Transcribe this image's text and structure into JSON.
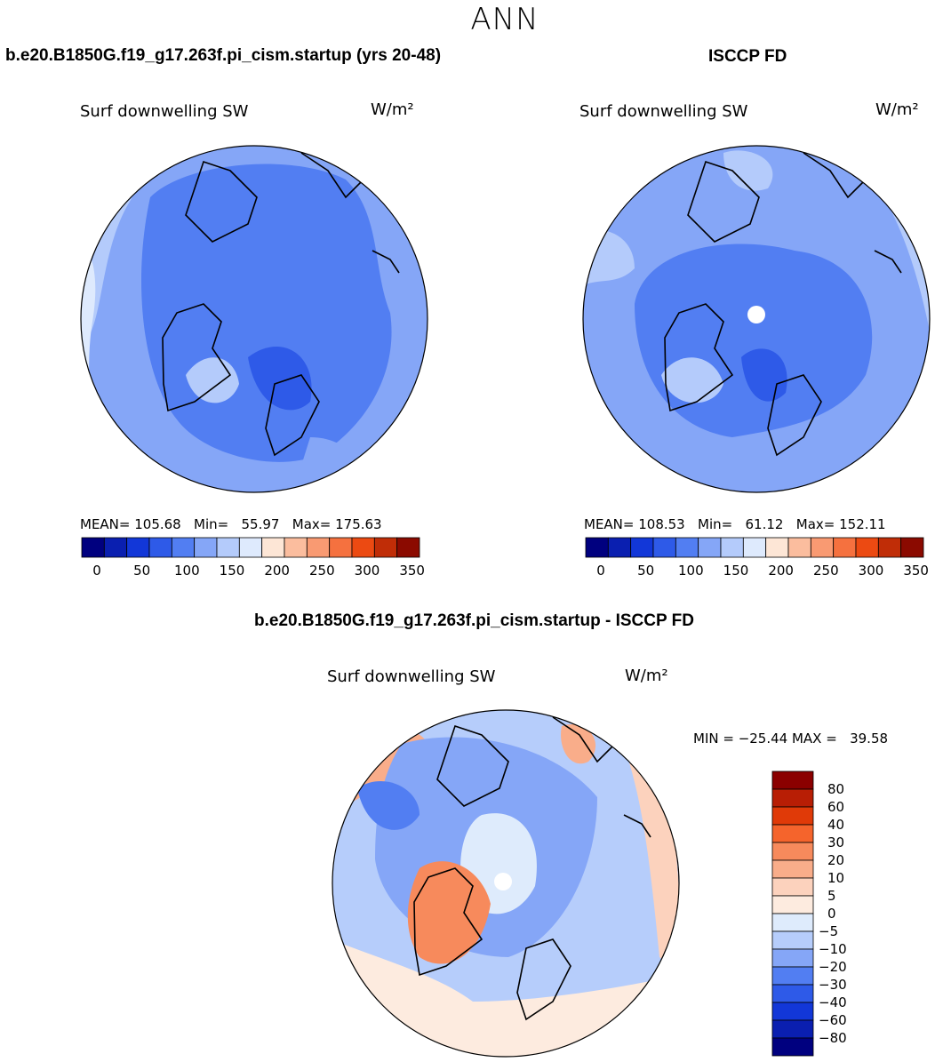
{
  "page_title": "ANN",
  "panels": [
    {
      "title": "b.e20.B1850G.f19_g17.263f.pi_cism.startup (yrs 20-48)",
      "variable": "Surf downwelling SW",
      "units": "W/m²",
      "stats": "MEAN= 105.68   Min=   55.97   Max= 175.63",
      "colorbar_ticks": [
        "0",
        "50",
        "100",
        "150",
        "200",
        "250",
        "300",
        "350"
      ]
    },
    {
      "title": "ISCCP FD",
      "variable": "Surf downwelling SW",
      "units": "W/m²",
      "stats": "MEAN= 108.53   Min=   61.12   Max= 152.11",
      "colorbar_ticks": [
        "0",
        "50",
        "100",
        "150",
        "200",
        "250",
        "300",
        "350"
      ]
    }
  ],
  "difference": {
    "title": "b.e20.B1850G.f19_g17.263f.pi_cism.startup - ISCCP FD",
    "variable": "Surf downwelling SW",
    "units": "W/m²",
    "stats": "MIN = −25.44 MAX =   39.58",
    "colorbar_ticks": [
      "80",
      "60",
      "40",
      "30",
      "20",
      "10",
      "5",
      "0",
      "−5",
      "−10",
      "−20",
      "−30",
      "−40",
      "−60",
      "−80"
    ]
  },
  "colors": {
    "abs_scale": [
      "#00007f",
      "#0a1fb0",
      "#1237d8",
      "#2e5ae8",
      "#527ef2",
      "#85a6f7",
      "#b4cbfb",
      "#deeafd",
      "#fde6d6",
      "#fbbd9e",
      "#f99a72",
      "#f5713f",
      "#ec4a12",
      "#c02d07",
      "#8b0a00"
    ],
    "diff_scale": [
      "#8b0000",
      "#b81e05",
      "#e03a08",
      "#f5642c",
      "#f78a5c",
      "#f9ad8a",
      "#fcd2bd",
      "#fdebdf",
      "#deebfc",
      "#b6cdfb",
      "#85a6f7",
      "#527ef2",
      "#2e5ae8",
      "#1237d8",
      "#0a1fb0",
      "#00007f"
    ],
    "polar_fill": "#ffffff",
    "coastline": "#000000"
  }
}
